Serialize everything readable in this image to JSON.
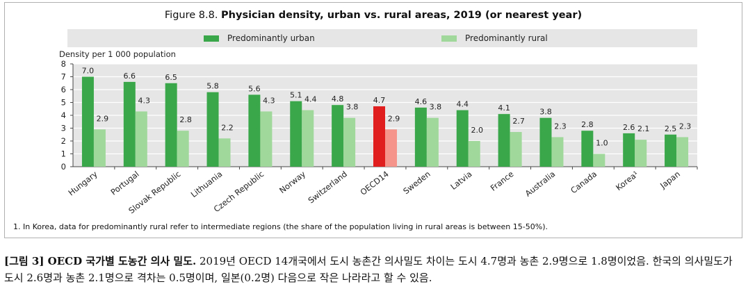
{
  "figure": {
    "title_prefix": "Figure 8.8.",
    "title_bold": "Physician density, urban vs. rural areas, 2019 (or nearest year)",
    "footnote": "1. In Korea, data for predominantly rural refer to intermediate regions (the share of the population living in rural areas is between 15-50%)."
  },
  "caption": {
    "bold": "[그림 3] OECD 국가별 도농간 의사 밀도.",
    "text": " 2019년 OECD 14개국에서 도시 농촌간 의사밀도 차이는 도시 4.7명과 농촌 2.9명으로 1.8명이었음. 한국의 의사밀도가 도시 2.6명과 농촌 2.1명으로 격차는 0.5명이며, 일본(0.2명) 다음으로 작은 나라라고 할 수 있음."
  },
  "colors": {
    "urban": "#3aa84a",
    "rural": "#9fd89a",
    "urban_highlight": "#e01e1e",
    "rural_highlight": "#f4948a",
    "axis": "#444444",
    "grid": "#ffffff",
    "plot_bg": "#e6e6e6"
  },
  "chart_data": {
    "type": "bar",
    "title": "Physician density, urban vs. rural areas, 2019 (or nearest year)",
    "ylabel": "Density per 1 000 population",
    "xlabel": "",
    "ylim": [
      0,
      8
    ],
    "yticks": [
      "0",
      "1",
      "2",
      "3",
      "4",
      "5",
      "6",
      "7",
      "8"
    ],
    "categories": [
      "Hungary",
      "Portugal",
      "Slovak Republic",
      "Lithuania",
      "Czech Republic",
      "Norway",
      "Switzerland",
      "OECD14",
      "Sweden",
      "Latvia",
      "France",
      "Australia",
      "Canada",
      "Korea¹",
      "Japan"
    ],
    "highlight": "OECD14",
    "series": [
      {
        "name": "Predominantly urban",
        "values": [
          7.0,
          6.6,
          6.5,
          5.8,
          5.6,
          5.1,
          4.8,
          4.7,
          4.6,
          4.4,
          4.1,
          3.8,
          2.8,
          2.6,
          2.5
        ],
        "labels": [
          "7.0",
          "6.6",
          "6.5",
          "5.8",
          "5.6",
          "5.1",
          "4.8",
          "4.7",
          "4.6",
          "4.4",
          "4.1",
          "3.8",
          "2.8",
          "2.6",
          "2.5"
        ]
      },
      {
        "name": "Predominantly rural",
        "values": [
          2.9,
          4.3,
          2.8,
          2.2,
          4.3,
          4.4,
          3.8,
          2.9,
          3.8,
          2.0,
          2.7,
          2.3,
          1.0,
          2.1,
          2.3
        ],
        "labels": [
          "2.9",
          "4.3",
          "2.8",
          "2.2",
          "4.3",
          "4.4",
          "3.8",
          "2.9",
          "3.8",
          "2.0",
          "2.7",
          "2.3",
          "1.0",
          "2.1",
          "2.3"
        ]
      }
    ],
    "legend_position": "top"
  }
}
